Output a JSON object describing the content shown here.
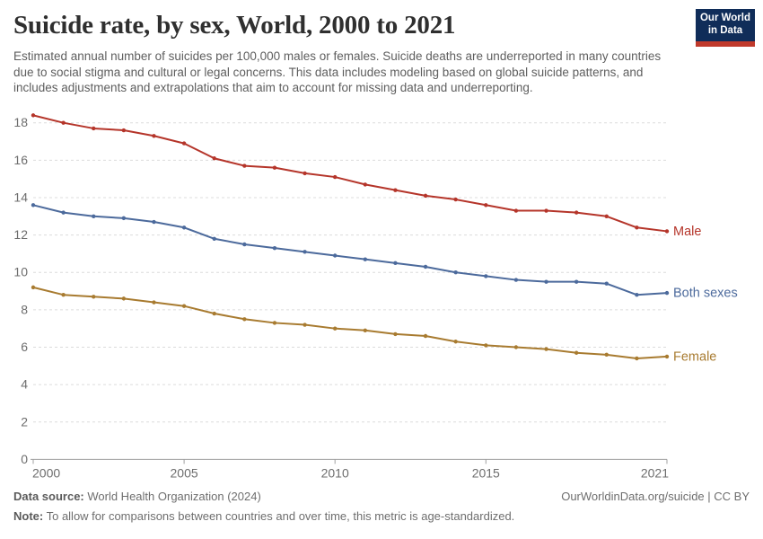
{
  "header": {
    "title": "Suicide rate, by sex, World, 2000 to 2021",
    "subtitle": "Estimated annual number of suicides per 100,000 males or females. Suicide deaths are underreported in many countries due to social stigma and cultural or legal concerns. This data includes modeling based on global suicide patterns, and includes adjustments and extrapolations that aim to account for missing data and underreporting."
  },
  "logo": {
    "line1": "Our World",
    "line2": "in Data",
    "bg_color": "#102D59",
    "accent_color": "#C0392B"
  },
  "chart_data": {
    "type": "line",
    "title": "Suicide rate, by sex, World, 2000 to 2021",
    "xlabel": "",
    "ylabel": "",
    "x": [
      2000,
      2001,
      2002,
      2003,
      2004,
      2005,
      2006,
      2007,
      2008,
      2009,
      2010,
      2011,
      2012,
      2013,
      2014,
      2015,
      2016,
      2017,
      2018,
      2019,
      2020,
      2021
    ],
    "series": [
      {
        "name": "Male",
        "color": "#B5352A",
        "values": [
          18.4,
          18.0,
          17.7,
          17.6,
          17.3,
          16.9,
          16.1,
          15.7,
          15.6,
          15.3,
          15.1,
          14.7,
          14.4,
          14.1,
          13.9,
          13.6,
          13.3,
          13.3,
          13.2,
          13.0,
          12.4,
          12.2
        ]
      },
      {
        "name": "Both sexes",
        "color": "#4C6A9C",
        "values": [
          13.6,
          13.2,
          13.0,
          12.9,
          12.7,
          12.4,
          11.8,
          11.5,
          11.3,
          11.1,
          10.9,
          10.7,
          10.5,
          10.3,
          10.0,
          9.8,
          9.6,
          9.5,
          9.5,
          9.4,
          8.8,
          8.9
        ]
      },
      {
        "name": "Female",
        "color": "#A87B30",
        "values": [
          9.2,
          8.8,
          8.7,
          8.6,
          8.4,
          8.2,
          7.8,
          7.5,
          7.3,
          7.2,
          7.0,
          6.9,
          6.7,
          6.6,
          6.3,
          6.1,
          6.0,
          5.9,
          5.7,
          5.6,
          5.4,
          5.5
        ]
      }
    ],
    "ylim": [
      0,
      18
    ],
    "yticks": [
      0,
      2,
      4,
      6,
      8,
      10,
      12,
      14,
      16,
      18
    ],
    "xticks": [
      2000,
      2005,
      2010,
      2015,
      2021
    ],
    "grid": "horizontal-dashed",
    "legend_position": "line-end-labels",
    "axis_color": "#a0a0a0",
    "grid_color": "#dcdcdc",
    "tick_label_color": "#6e6e6e"
  },
  "footer": {
    "datasource_label": "Data source:",
    "datasource_value": " World Health Organization (2024)",
    "link_text": "OurWorldinData.org/suicide | CC BY",
    "note_label": "Note:",
    "note_value": " To allow for comparisons between countries and over time, this metric is age-standardized."
  }
}
